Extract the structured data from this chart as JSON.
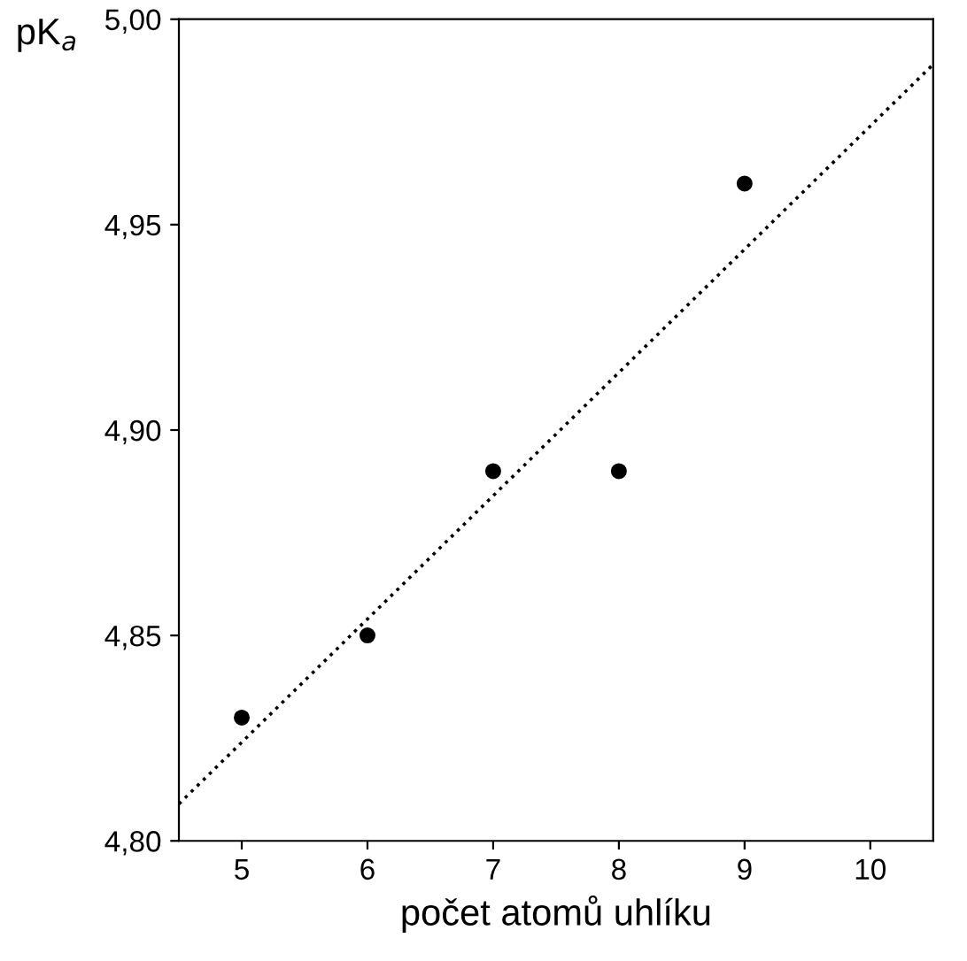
{
  "chart_data": {
    "type": "scatter",
    "xlabel": "počet atomů uhlíku",
    "ylabel": "pK$_{a}$",
    "series": [
      {
        "color": "#000000",
        "marker": "circle",
        "x": [
          5,
          6,
          7,
          8,
          9
        ],
        "values": [
          4.83,
          4.85,
          4.89,
          4.89,
          4.96
        ]
      },
      {
        "type": "line",
        "color": "#000000",
        "marker": "none",
        "line_style": "dotted",
        "x": [
          4.5,
          10.5
        ],
        "values": [
          4.809,
          4.989
        ]
      }
    ],
    "xlim": [
      4.5,
      10.5
    ],
    "xticks": [
      5,
      6,
      7,
      8,
      9,
      10
    ],
    "ylim": [
      4.8,
      5.0
    ],
    "yticks": [
      {
        "value": 4.8,
        "label": "4,80"
      },
      {
        "value": 4.85,
        "label": "4,85"
      },
      {
        "value": 4.9,
        "label": "4,90"
      },
      {
        "value": 4.95,
        "label": "4,95"
      },
      {
        "value": 5.0,
        "label": "5,00"
      }
    ],
    "grid": false,
    "legend": false
  }
}
